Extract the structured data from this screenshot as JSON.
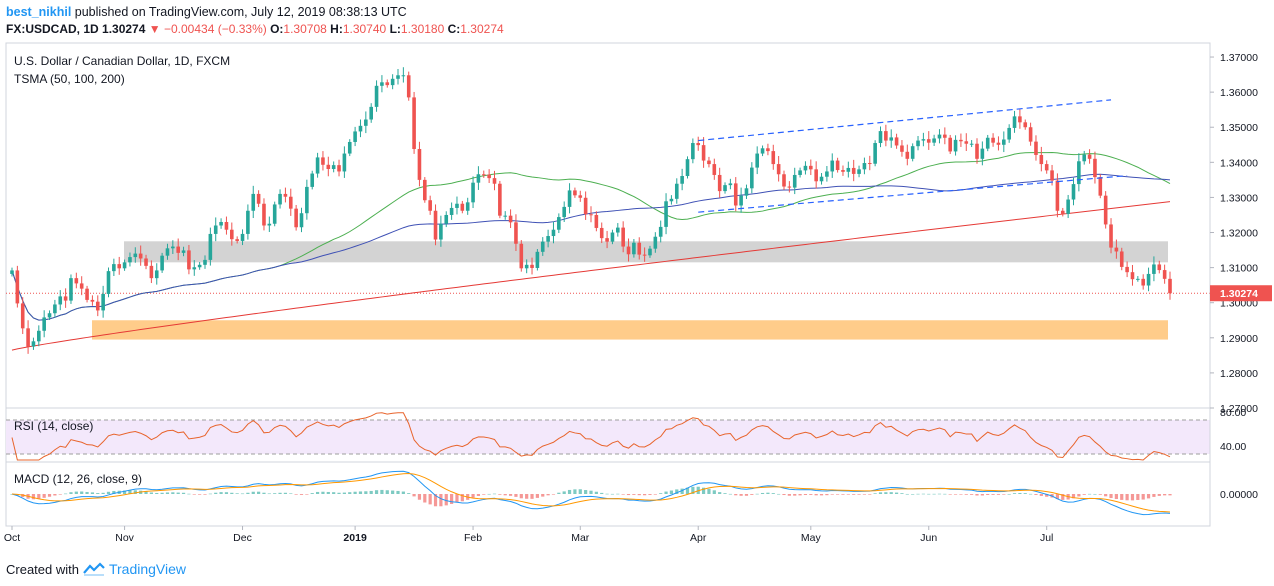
{
  "header": {
    "publisher": "best_nikhil",
    "published_text": "published on TradingView.com, July 12, 2019 08:38:13 UTC",
    "symbol": "FX:USDCAD, 1D",
    "last": "1.30274",
    "change": "−0.00434 (−0.33%)",
    "o_label": "O:",
    "o": "1.30708",
    "h_label": "H:",
    "h": "1.30740",
    "l_label": "L:",
    "l": "1.30180",
    "c_label": "C:",
    "c": "1.30274"
  },
  "footer": {
    "created_with": "Created with",
    "brand": "TradingView"
  },
  "chart_data": {
    "type": "candlestick",
    "title": "U.S. Dollar / Canadian Dollar, 1D, FXCM",
    "indicator_label": "TSMA (50, 100, 200)",
    "last_price_label": "1.30274",
    "y_ticks": [
      "1.37000",
      "1.36000",
      "1.35000",
      "1.34000",
      "1.33000",
      "1.32000",
      "1.31000",
      "1.30000",
      "1.29000",
      "1.28000",
      "1.27000"
    ],
    "ylim": [
      1.27,
      1.374
    ],
    "x_ticks": [
      "Oct",
      "Nov",
      "Dec",
      "2019",
      "Feb",
      "Mar",
      "Apr",
      "May",
      "Jun",
      "Jul"
    ],
    "zones": [
      {
        "name": "grey",
        "from": 1.3115,
        "to": 1.3175,
        "color": "#d3d3d3"
      },
      {
        "name": "orange",
        "from": 1.2895,
        "to": 1.295,
        "color": "#ffcc8a"
      }
    ],
    "channel_lines": [
      {
        "from_index": 128,
        "from_value": 1.3462,
        "to_index": 205,
        "to_value": 1.3578
      },
      {
        "from_index": 128,
        "from_value": 1.3258,
        "to_index": 208,
        "to_value": 1.3362
      }
    ],
    "colors": {
      "up": "#26a69a",
      "down": "#ef5350",
      "ma50": "#4caf50",
      "ma100": "#3f51b5",
      "ma200": "#e53935",
      "rsi": "#e8642c",
      "macd": "#2196f3",
      "signal": "#ff9800"
    },
    "rsi": {
      "label": "RSI (14, close)",
      "ticks": [
        "80.00",
        "40.00"
      ],
      "band": [
        30,
        70
      ]
    },
    "macd": {
      "label": "MACD (12, 26, close, 9)",
      "ticks": [
        "0.00000"
      ]
    },
    "closes": [
      1.3092,
      1.2998,
      1.2927,
      1.2875,
      1.289,
      1.292,
      1.2958,
      1.297,
      1.2995,
      1.3018,
      1.3006,
      1.307,
      1.3055,
      1.304,
      1.3008,
      1.3003,
      1.2978,
      1.3025,
      1.309,
      1.311,
      1.3098,
      1.3115,
      1.313,
      1.314,
      1.3126,
      1.3105,
      1.307,
      1.3092,
      1.3134,
      1.3155,
      1.316,
      1.3142,
      1.3149,
      1.3095,
      1.3101,
      1.3108,
      1.3122,
      1.3196,
      1.322,
      1.323,
      1.3208,
      1.3181,
      1.3176,
      1.3196,
      1.3262,
      1.331,
      1.3282,
      1.322,
      1.3225,
      1.328,
      1.331,
      1.3302,
      1.3268,
      1.3215,
      1.3255,
      1.333,
      1.3368,
      1.3414,
      1.3393,
      1.3381,
      1.3392,
      1.3374,
      1.3425,
      1.3458,
      1.3488,
      1.3504,
      1.3522,
      1.3558,
      1.3618,
      1.3628,
      1.362,
      1.3638,
      1.3648,
      1.3648,
      1.3585,
      1.3438,
      1.335,
      1.3292,
      1.3262,
      1.318,
      1.3225,
      1.325,
      1.327,
      1.3282,
      1.3262,
      1.3286,
      1.3342,
      1.3366,
      1.3365,
      1.3355,
      1.3339,
      1.3248,
      1.3248,
      1.3229,
      1.3168,
      1.3098,
      1.3108,
      1.3099,
      1.3145,
      1.3174,
      1.319,
      1.3208,
      1.3244,
      1.3273,
      1.332,
      1.3306,
      1.3299,
      1.3252,
      1.325,
      1.3213,
      1.3184,
      1.3174,
      1.32,
      1.3214,
      1.316,
      1.3138,
      1.3171,
      1.3137,
      1.3135,
      1.3154,
      1.3188,
      1.3216,
      1.3289,
      1.3296,
      1.3339,
      1.3361,
      1.3409,
      1.3455,
      1.3449,
      1.3405,
      1.3395,
      1.3364,
      1.3318,
      1.3335,
      1.334,
      1.3277,
      1.3305,
      1.3326,
      1.3385,
      1.3425,
      1.344,
      1.3432,
      1.3395,
      1.3366,
      1.3331,
      1.3328,
      1.3364,
      1.3377,
      1.339,
      1.338,
      1.3346,
      1.3359,
      1.3374,
      1.3405,
      1.3378,
      1.3373,
      1.3384,
      1.3367,
      1.338,
      1.3398,
      1.3396,
      1.3455,
      1.3489,
      1.3462,
      1.3471,
      1.3448,
      1.343,
      1.341,
      1.3446,
      1.3462,
      1.3466,
      1.3456,
      1.3468,
      1.3479,
      1.347,
      1.3431,
      1.3464,
      1.346,
      1.3453,
      1.3453,
      1.341,
      1.3439,
      1.347,
      1.3456,
      1.345,
      1.3465,
      1.3498,
      1.3531,
      1.3514,
      1.35,
      1.3459,
      1.3421,
      1.3395,
      1.3377,
      1.3348,
      1.3262,
      1.3253,
      1.3294,
      1.3338,
      1.3403,
      1.3422,
      1.341,
      1.3358,
      1.3305,
      1.3223,
      1.3157,
      1.3146,
      1.3102,
      1.3087,
      1.3067,
      1.3068,
      1.3049,
      1.3082,
      1.3109,
      1.3093,
      1.3068,
      1.3027
    ]
  }
}
